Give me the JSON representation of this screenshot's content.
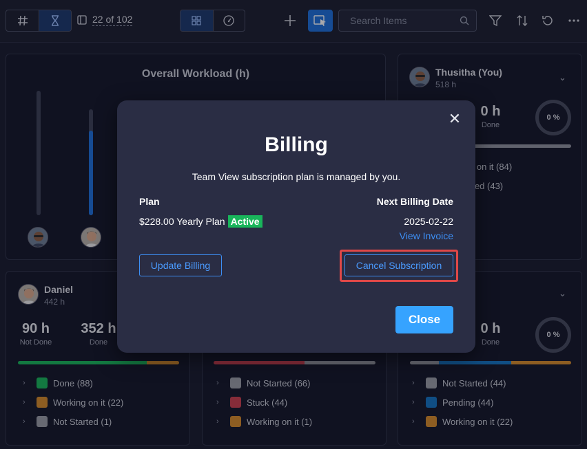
{
  "toolbar": {
    "counter": "22 of 102",
    "search_placeholder": "Search Items"
  },
  "workload": {
    "title": "Overall Workload (h)",
    "bars": [
      {
        "level": 1.0
      },
      {
        "level": 0.8
      }
    ]
  },
  "cards": {
    "thusitha": {
      "name": "Thusitha (You)",
      "hours": "518 h",
      "stat_done_value": "0 h",
      "stat_done_label": "Done",
      "donut": "0 %",
      "status_partial_1": "g on it (84)",
      "status_partial_2": "rted (43)",
      "bar": [
        {
          "color": "#d48b2c",
          "share": 0.26
        },
        {
          "color": "#8f939f",
          "share": 0.74
        }
      ]
    },
    "daniel": {
      "name": "Daniel",
      "hours": "442 h",
      "stat1_value": "90 h",
      "stat1_label": "Not Done",
      "stat2_value": "352 h",
      "stat2_label": "Done",
      "bar": [
        {
          "color": "#19b55b",
          "share": 0.8
        },
        {
          "color": "#d48b2c",
          "share": 0.2
        }
      ],
      "statuses": [
        {
          "label": "Done (88)",
          "color": "#19b55b"
        },
        {
          "label": "Working on it (22)",
          "color": "#d48b2c"
        },
        {
          "label": "Not Started (1)",
          "color": "#9a9da6"
        }
      ]
    },
    "middle": {
      "bar": [
        {
          "color": "#c9404f",
          "share": 0.56
        },
        {
          "color": "#9a9da6",
          "share": 0.44
        }
      ],
      "statuses": [
        {
          "label": "Not Started (66)",
          "color": "#9a9da6"
        },
        {
          "label": "Stuck (44)",
          "color": "#c9404f"
        },
        {
          "label": "Working on it (1)",
          "color": "#d48b2c"
        }
      ]
    },
    "right_bottom": {
      "stat_done_value": "0 h",
      "stat_done_label": "Done",
      "donut": "0 %",
      "bar": [
        {
          "color": "#9a9da6",
          "share": 0.18
        },
        {
          "color": "#1473c2",
          "share": 0.45
        },
        {
          "color": "#d48b2c",
          "share": 0.37
        }
      ],
      "statuses": [
        {
          "label": "Not Started (44)",
          "color": "#9a9da6"
        },
        {
          "label": "Pending (44)",
          "color": "#1473c2"
        },
        {
          "label": "Working on it (22)",
          "color": "#d48b2c"
        }
      ]
    }
  },
  "modal": {
    "title": "Billing",
    "subtitle": "Team View subscription plan is managed by you.",
    "plan_label": "Plan",
    "plan_value": "$228.00 Yearly Plan",
    "plan_status": "Active",
    "next_billing_label": "Next Billing Date",
    "next_billing_value": "2025-02-22",
    "view_invoice": "View Invoice",
    "update_billing": "Update Billing",
    "cancel_subscription": "Cancel Subscription",
    "close": "Close"
  }
}
